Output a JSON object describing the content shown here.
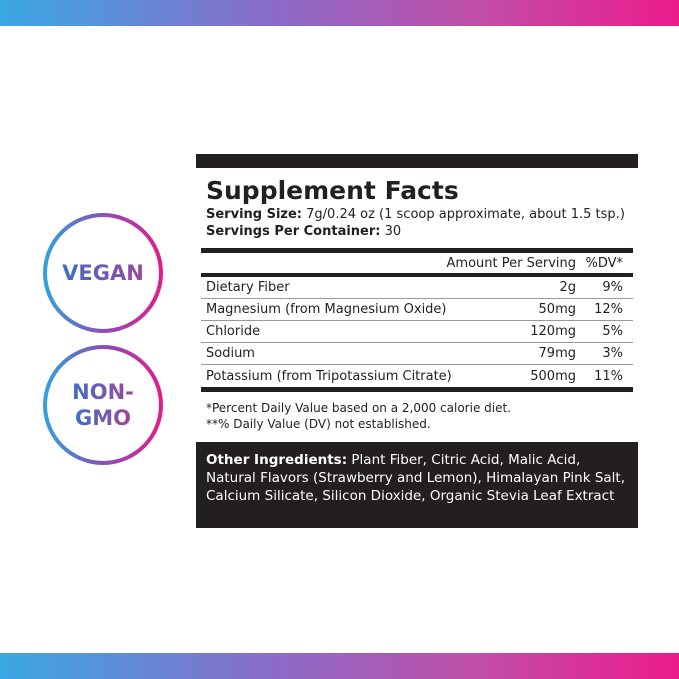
{
  "colors": {
    "gradient_start": "#3aa8e4",
    "gradient_end": "#ec1b8c",
    "label_black": "#231f20"
  },
  "badges": [
    {
      "lines": [
        "VEGAN"
      ]
    },
    {
      "lines": [
        "NON-",
        "GMO"
      ]
    }
  ],
  "label": {
    "title": "Supplement Facts",
    "serving_size_label": "Serving Size:",
    "serving_size_value": "7g/0.24 oz (1 scoop approximate, about 1.5 tsp.)",
    "servings_label": "Servings Per Container:",
    "servings_value": "30",
    "header_amount": "Amount Per Serving",
    "header_dv": "%DV*",
    "rows": [
      {
        "name": "Dietary Fiber",
        "amount": "2g",
        "dv": "9%"
      },
      {
        "name": "Magnesium (from Magnesium Oxide)",
        "amount": "50mg",
        "dv": "12%"
      },
      {
        "name": "Chloride",
        "amount": "120mg",
        "dv": "5%"
      },
      {
        "name": "Sodium",
        "amount": "79mg",
        "dv": "3%"
      },
      {
        "name": "Potassium (from Tripotassium Citrate)",
        "amount": "500mg",
        "dv": "11%"
      }
    ],
    "footnote1": "*Percent Daily Value based on a 2,000 calorie diet.",
    "footnote2": "**% Daily Value (DV) not established.",
    "other_label": "Other Ingredients:",
    "other_value": " Plant Fiber, Citric Acid, Malic Acid, Natural Flavors (Strawberry and Lemon), Himalayan Pink Salt, Calcium Silicate, Silicon Dioxide, Organic Stevia Leaf Extract"
  }
}
